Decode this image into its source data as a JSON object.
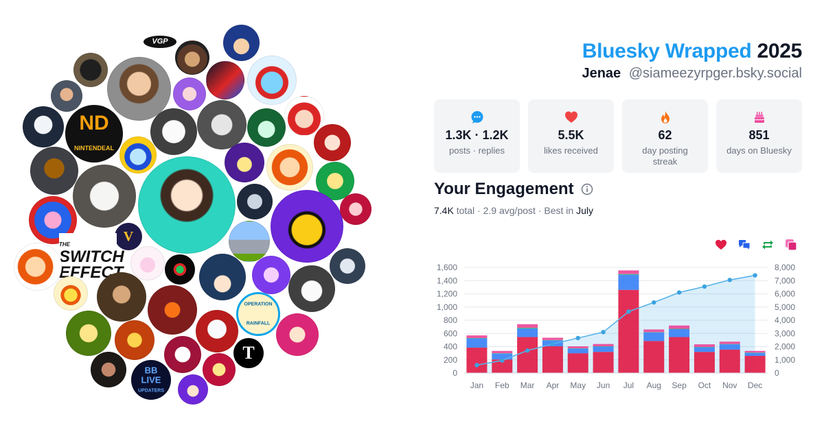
{
  "header": {
    "title_brand": "Bluesky Wrapped",
    "title_year": "2025",
    "display_name": "Jenae",
    "handle": "@siameezyrpger.bsky.social"
  },
  "stats": [
    {
      "icon": "speech-bubble-icon",
      "value": "1.3K · 1.2K",
      "label": "posts · replies",
      "color": "#1d9bf0"
    },
    {
      "icon": "heart-icon",
      "value": "5.5K",
      "label": "likes received",
      "color": "#ef4444"
    },
    {
      "icon": "flame-icon",
      "value": "62",
      "label": "day posting streak",
      "color": "#f97316"
    },
    {
      "icon": "cake-icon",
      "value": "851",
      "label": "days on Bluesky",
      "color": "#ec4899"
    }
  ],
  "engagement": {
    "title": "Your Engagement",
    "total": "7.4K",
    "total_word": "total",
    "avg": "2.9 avg/post",
    "best_prefix": "Best in",
    "best_month": "July"
  },
  "legend_icons": [
    {
      "icon": "heart-icon",
      "color": "#e11d48"
    },
    {
      "icon": "reply-icon",
      "color": "#2563eb"
    },
    {
      "icon": "repost-icon",
      "color": "#16a34a"
    },
    {
      "icon": "quote-icon",
      "color": "#db2777"
    }
  ],
  "avatar_cloud": {
    "labels": {
      "vgp": "VGP",
      "nd_top": "ND",
      "nd_bottom": "NINTENDEAL",
      "v": "V",
      "switch_top": "THE",
      "switch_mid": "SWITCH",
      "switch_bottom": "EFFECT",
      "bb_1": "BB",
      "bb_2": "LIVE",
      "bb_3": "UPDATERS",
      "op_1": "OPERATION",
      "op_2": "RAINFALL",
      "nyt": "T"
    }
  },
  "chart_data": {
    "type": "bar",
    "categories": [
      "Jan",
      "Feb",
      "Mar",
      "Apr",
      "May",
      "Jun",
      "Jul",
      "Aug",
      "Sep",
      "Oct",
      "Nov",
      "Dec"
    ],
    "series": [
      {
        "color": "#e11d48",
        "values": [
          385,
          205,
          545,
          405,
          300,
          320,
          1260,
          485,
          545,
          320,
          355,
          260
        ]
      },
      {
        "color": "#3b82f6",
        "values": [
          140,
          90,
          130,
          90,
          70,
          80,
          230,
          130,
          120,
          70,
          80,
          45
        ]
      },
      {
        "color": "#22c55e",
        "values": [
          5,
          5,
          10,
          5,
          5,
          5,
          10,
          5,
          5,
          5,
          5,
          5
        ]
      },
      {
        "color": "#ec4899",
        "values": [
          40,
          35,
          55,
          35,
          30,
          35,
          55,
          40,
          50,
          40,
          35,
          25
        ]
      }
    ],
    "cumulative": [
      600,
      950,
      1700,
      2200,
      2650,
      3100,
      4650,
      5350,
      6100,
      6550,
      7050,
      7400
    ],
    "y_left": {
      "min": 0,
      "max": 1600,
      "ticks": [
        "0",
        "200",
        "400",
        "600",
        "800",
        "1,000",
        "1,200",
        "1,400",
        "1,600"
      ]
    },
    "y_right": {
      "min": 0,
      "max": 8000,
      "ticks": [
        "0",
        "1,000",
        "2,000",
        "3,000",
        "4,000",
        "5,000",
        "6,000",
        "7,000",
        "8,000"
      ]
    },
    "grid": true
  }
}
